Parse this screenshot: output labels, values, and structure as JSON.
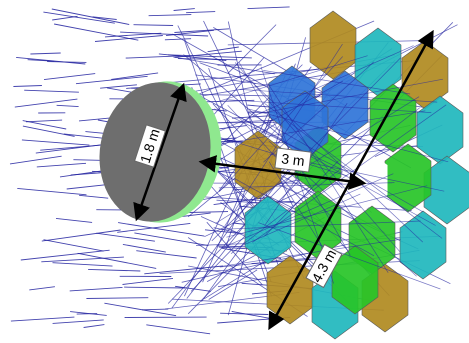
{
  "diagram": {
    "labels": {
      "secondary_diameter": "1.8 m",
      "separation": "3 m",
      "primary_diameter": "4.3 m"
    },
    "colors": {
      "background": "#ffffff",
      "ray": "#2323a0",
      "secondary_face": "#6e6e6e",
      "secondary_rim": "#8fe88f",
      "segment_gold": "#b08a1f",
      "segment_cyan": "#1fb7bd",
      "segment_blue": "#2f74d8",
      "segment_green": "#27c427",
      "arrow": "#000000",
      "label_box": "#ffffff"
    },
    "icons": {
      "secondary": "grey-disk-icon",
      "primary": "segmented-hexagonal-mirror-icon"
    }
  }
}
